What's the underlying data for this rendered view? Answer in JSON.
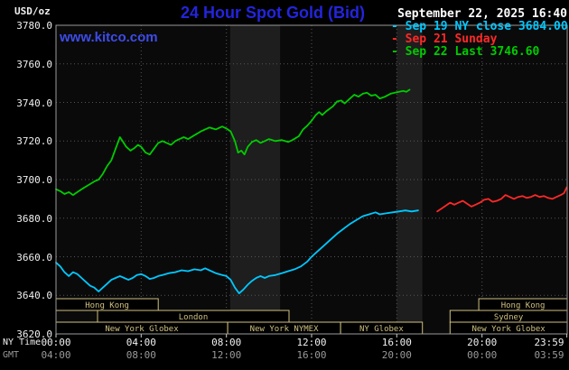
{
  "header": {
    "units": "USD/oz",
    "title": "24 Hour Spot Gold (Bid)",
    "datetime": "September 22, 2025 16:40",
    "watermark": "www.kitco.com"
  },
  "legend": [
    {
      "marker": "-",
      "label": "Sep 19 NY close 3684.00",
      "color": "#00c8ff"
    },
    {
      "marker": "-",
      "label": "Sep 21 Sunday",
      "color": "#ff2828"
    },
    {
      "marker": "-",
      "label": "Sep 22 Last 3746.60",
      "color": "#00cc00"
    }
  ],
  "axes": {
    "ny_time_label": "NY Time",
    "gmt_label": "GMT",
    "tick_hours": [
      0,
      4,
      8,
      12,
      16,
      20,
      23.983
    ],
    "ny_ticks": [
      "00:00",
      "04:00",
      "08:00",
      "12:00",
      "16:00",
      "20:00",
      "23:59"
    ],
    "gmt_ticks": [
      "04:00",
      "08:00",
      "12:00",
      "16:00",
      "20:00",
      "00:00",
      "03:59"
    ],
    "y_ticks": [
      "3780.0",
      "3760.0",
      "3740.0",
      "3720.0",
      "3700.0",
      "3680.0",
      "3660.0",
      "3640.0",
      "3620.0"
    ]
  },
  "sessions": [
    {
      "row": 0,
      "start": 0,
      "end": 4.8,
      "label": "Hong Kong"
    },
    {
      "row": 0,
      "start": 19.85,
      "end": 24,
      "label": "Hong Kong"
    },
    {
      "row": 1,
      "start": 1.95,
      "end": 10.94,
      "label": "London"
    },
    {
      "row": 1,
      "start": 18.5,
      "end": 24,
      "label": "Sydney"
    },
    {
      "row": 2,
      "start": 0,
      "end": 8.06,
      "label": "New York Globex"
    },
    {
      "row": 2,
      "start": 8.06,
      "end": 13.36,
      "label": "New York NYMEX"
    },
    {
      "row": 2,
      "start": 13.36,
      "end": 17.2,
      "label": "NY Globex"
    },
    {
      "row": 2,
      "start": 18.5,
      "end": 24,
      "label": "New York Globex"
    }
  ],
  "chart_data": {
    "type": "line",
    "title": "24 Hour Spot Gold (Bid)",
    "xlabel": "NY Time",
    "ylabel": "USD/oz",
    "x_range_hours": [
      0,
      24
    ],
    "ylim": [
      3620,
      3780
    ],
    "grid": true,
    "grid_step_y": 20,
    "grid_step_x": 4,
    "legend_position": "top-right",
    "colors": {
      "plot_bg": "#0a0a0a",
      "band": "#1e1e1e",
      "grid": "#555555",
      "border": "#9a9a9a",
      "tick": "#cccccc",
      "session": "#cfc080",
      "title_blue": "#2424dd",
      "watermark_blue": "#3d4ce8",
      "text": "#ffffff",
      "gmt_text": "#999999"
    },
    "bands_hours": [
      [
        8.18,
        10.52
      ],
      [
        16.0,
        17.2
      ]
    ],
    "series": [
      {
        "id": "sep19-ny-close",
        "name": "Sep 19 NY close",
        "close": 3684.0,
        "color": "#00c8ff",
        "points": [
          [
            0,
            3657
          ],
          [
            0.2,
            3655
          ],
          [
            0.4,
            3652
          ],
          [
            0.6,
            3650
          ],
          [
            0.8,
            3652
          ],
          [
            1,
            3651
          ],
          [
            1.2,
            3649
          ],
          [
            1.4,
            3647
          ],
          [
            1.6,
            3645
          ],
          [
            1.8,
            3644
          ],
          [
            2,
            3642
          ],
          [
            2.2,
            3644
          ],
          [
            2.4,
            3646
          ],
          [
            2.6,
            3648
          ],
          [
            2.8,
            3649
          ],
          [
            3,
            3650
          ],
          [
            3.2,
            3649
          ],
          [
            3.4,
            3648
          ],
          [
            3.6,
            3649
          ],
          [
            3.8,
            3650.5
          ],
          [
            4,
            3651
          ],
          [
            4.2,
            3650
          ],
          [
            4.4,
            3648.5
          ],
          [
            4.6,
            3649
          ],
          [
            4.8,
            3650
          ],
          [
            5,
            3650.5
          ],
          [
            5.3,
            3651.5
          ],
          [
            5.6,
            3652
          ],
          [
            5.9,
            3653
          ],
          [
            6.2,
            3652.5
          ],
          [
            6.5,
            3653.5
          ],
          [
            6.8,
            3653
          ],
          [
            7,
            3654
          ],
          [
            7.2,
            3653
          ],
          [
            7.5,
            3651.5
          ],
          [
            7.8,
            3650.5
          ],
          [
            8,
            3650
          ],
          [
            8.2,
            3648
          ],
          [
            8.4,
            3644
          ],
          [
            8.6,
            3641
          ],
          [
            8.8,
            3643
          ],
          [
            9,
            3645.5
          ],
          [
            9.2,
            3647.5
          ],
          [
            9.4,
            3649
          ],
          [
            9.6,
            3650
          ],
          [
            9.8,
            3649
          ],
          [
            10,
            3650
          ],
          [
            10.3,
            3650.5
          ],
          [
            10.6,
            3651.5
          ],
          [
            10.9,
            3652.5
          ],
          [
            11.2,
            3653.5
          ],
          [
            11.5,
            3655
          ],
          [
            11.8,
            3657.5
          ],
          [
            12,
            3660
          ],
          [
            12.3,
            3663
          ],
          [
            12.6,
            3666
          ],
          [
            12.9,
            3669
          ],
          [
            13.2,
            3672
          ],
          [
            13.5,
            3674.5
          ],
          [
            13.8,
            3677
          ],
          [
            14.1,
            3679
          ],
          [
            14.4,
            3681
          ],
          [
            14.7,
            3682
          ],
          [
            15,
            3683
          ],
          [
            15.2,
            3682
          ],
          [
            15.5,
            3682.5
          ],
          [
            15.8,
            3683
          ],
          [
            16.1,
            3683.5
          ],
          [
            16.4,
            3684
          ],
          [
            16.7,
            3683.5
          ],
          [
            17,
            3684
          ]
        ]
      },
      {
        "id": "sep21-sunday",
        "name": "Sep 21 Sunday",
        "color": "#ff2828",
        "points": [
          [
            17.9,
            3683.5
          ],
          [
            18.1,
            3685
          ],
          [
            18.3,
            3686.5
          ],
          [
            18.5,
            3688
          ],
          [
            18.7,
            3687
          ],
          [
            18.9,
            3688
          ],
          [
            19.1,
            3689
          ],
          [
            19.3,
            3687.5
          ],
          [
            19.5,
            3686
          ],
          [
            19.7,
            3687
          ],
          [
            19.9,
            3688
          ],
          [
            20.1,
            3689.5
          ],
          [
            20.3,
            3690
          ],
          [
            20.5,
            3688.5
          ],
          [
            20.7,
            3689
          ],
          [
            20.9,
            3690
          ],
          [
            21.1,
            3692
          ],
          [
            21.3,
            3691
          ],
          [
            21.5,
            3690
          ],
          [
            21.7,
            3691
          ],
          [
            21.9,
            3691.5
          ],
          [
            22.1,
            3690.5
          ],
          [
            22.3,
            3691
          ],
          [
            22.5,
            3692
          ],
          [
            22.7,
            3691
          ],
          [
            22.9,
            3691.5
          ],
          [
            23.1,
            3690.5
          ],
          [
            23.3,
            3690
          ],
          [
            23.5,
            3691
          ],
          [
            23.7,
            3692
          ],
          [
            23.85,
            3693
          ],
          [
            23.98,
            3696
          ]
        ]
      },
      {
        "id": "sep22-current",
        "name": "Sep 22",
        "last": 3746.6,
        "color": "#00cc00",
        "points": [
          [
            0,
            3695
          ],
          [
            0.2,
            3694
          ],
          [
            0.4,
            3692.5
          ],
          [
            0.6,
            3693.5
          ],
          [
            0.8,
            3692
          ],
          [
            1,
            3693.5
          ],
          [
            1.2,
            3695
          ],
          [
            1.5,
            3697
          ],
          [
            1.8,
            3699
          ],
          [
            2,
            3700
          ],
          [
            2.2,
            3703
          ],
          [
            2.4,
            3707
          ],
          [
            2.6,
            3710
          ],
          [
            2.8,
            3716
          ],
          [
            3,
            3722
          ],
          [
            3.15,
            3719.5
          ],
          [
            3.3,
            3717
          ],
          [
            3.5,
            3715
          ],
          [
            3.7,
            3716.5
          ],
          [
            3.85,
            3718
          ],
          [
            4,
            3717
          ],
          [
            4.2,
            3714
          ],
          [
            4.4,
            3713
          ],
          [
            4.6,
            3716
          ],
          [
            4.8,
            3719
          ],
          [
            5,
            3720
          ],
          [
            5.2,
            3719
          ],
          [
            5.4,
            3718
          ],
          [
            5.6,
            3720
          ],
          [
            5.8,
            3721
          ],
          [
            6,
            3722
          ],
          [
            6.2,
            3721
          ],
          [
            6.5,
            3723
          ],
          [
            6.8,
            3725
          ],
          [
            7,
            3726
          ],
          [
            7.2,
            3727
          ],
          [
            7.5,
            3726
          ],
          [
            7.8,
            3727.5
          ],
          [
            8,
            3726.5
          ],
          [
            8.2,
            3725
          ],
          [
            8.4,
            3720
          ],
          [
            8.55,
            3714
          ],
          [
            8.7,
            3715
          ],
          [
            8.85,
            3713
          ],
          [
            9,
            3717
          ],
          [
            9.2,
            3719.5
          ],
          [
            9.4,
            3720.5
          ],
          [
            9.6,
            3719
          ],
          [
            9.8,
            3720
          ],
          [
            10,
            3721
          ],
          [
            10.3,
            3720
          ],
          [
            10.6,
            3720.5
          ],
          [
            10.9,
            3719.5
          ],
          [
            11.1,
            3720.5
          ],
          [
            11.4,
            3722.5
          ],
          [
            11.6,
            3726
          ],
          [
            11.8,
            3728
          ],
          [
            12,
            3730.5
          ],
          [
            12.2,
            3733.5
          ],
          [
            12.35,
            3735
          ],
          [
            12.5,
            3733.5
          ],
          [
            12.7,
            3735.5
          ],
          [
            13,
            3738
          ],
          [
            13.2,
            3740.5
          ],
          [
            13.4,
            3741
          ],
          [
            13.55,
            3739.5
          ],
          [
            13.8,
            3742
          ],
          [
            14,
            3744
          ],
          [
            14.2,
            3743
          ],
          [
            14.4,
            3744.5
          ],
          [
            14.6,
            3745
          ],
          [
            14.8,
            3743.5
          ],
          [
            15,
            3744
          ],
          [
            15.2,
            3742
          ],
          [
            15.45,
            3743
          ],
          [
            15.7,
            3744.5
          ],
          [
            15.9,
            3745
          ],
          [
            16.1,
            3745.5
          ],
          [
            16.3,
            3746
          ],
          [
            16.45,
            3745.5
          ],
          [
            16.6,
            3746.6
          ]
        ]
      }
    ]
  }
}
